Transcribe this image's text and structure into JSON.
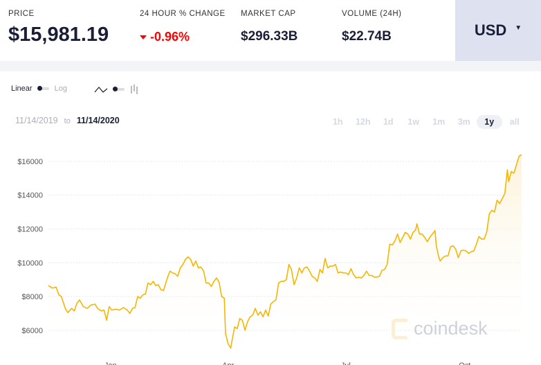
{
  "header": {
    "price": {
      "label": "PRICE",
      "value": "$15,981.19"
    },
    "change": {
      "label": "24 HOUR % CHANGE",
      "value": "-0.96%"
    },
    "market_cap": {
      "label": "MARKET CAP",
      "value": "$296.33B"
    },
    "volume": {
      "label": "VOLUME (24H)",
      "value": "$22.74B"
    },
    "currency": "USD"
  },
  "controls": {
    "linear": "Linear",
    "log": "Log"
  },
  "date_range": {
    "from": "11/14/2019",
    "to_word": "to",
    "to": "11/14/2020"
  },
  "ranges": [
    "1h",
    "12h",
    "1d",
    "1w",
    "1m",
    "3m",
    "1y",
    "all"
  ],
  "active_range": "1y",
  "watermark": "coindesk",
  "colors": {
    "line": "#f7b500",
    "fill": "#fdf3da",
    "accent": "#1a1f36",
    "negative": "#ff0000"
  },
  "chart_data": {
    "type": "area",
    "title": "",
    "xlabel": "",
    "ylabel": "",
    "x_unit": "days since 11/14/2019",
    "ylim": [
      4850,
      17350
    ],
    "xlim": [
      0,
      366
    ],
    "yticks": [
      {
        "v": 6000,
        "label": "$6000"
      },
      {
        "v": 8000,
        "label": "$8000"
      },
      {
        "v": 10000,
        "label": "$10000"
      },
      {
        "v": 12000,
        "label": "$12000"
      },
      {
        "v": 14000,
        "label": "$14000"
      },
      {
        "v": 16000,
        "label": "$16000"
      }
    ],
    "xticks": [
      {
        "d": 48,
        "label": "Jan"
      },
      {
        "d": 139,
        "label": "Apr"
      },
      {
        "d": 230,
        "label": "Jul"
      },
      {
        "d": 322,
        "label": "Oct"
      }
    ],
    "grid": true,
    "points": [
      [
        0,
        8650
      ],
      [
        3,
        8500
      ],
      [
        6,
        8550
      ],
      [
        8,
        8100
      ],
      [
        10,
        8000
      ],
      [
        13,
        7300
      ],
      [
        15,
        7050
      ],
      [
        18,
        7300
      ],
      [
        20,
        7150
      ],
      [
        22,
        7600
      ],
      [
        24,
        7800
      ],
      [
        27,
        7400
      ],
      [
        30,
        7300
      ],
      [
        33,
        7500
      ],
      [
        36,
        7550
      ],
      [
        38,
        7300
      ],
      [
        41,
        7150
      ],
      [
        43,
        7200
      ],
      [
        45,
        6600
      ],
      [
        47,
        7400
      ],
      [
        49,
        7200
      ],
      [
        52,
        7250
      ],
      [
        55,
        7200
      ],
      [
        58,
        7350
      ],
      [
        61,
        7200
      ],
      [
        63,
        7000
      ],
      [
        65,
        7300
      ],
      [
        67,
        7350
      ],
      [
        69,
        8000
      ],
      [
        71,
        7900
      ],
      [
        73,
        8100
      ],
      [
        75,
        8150
      ],
      [
        77,
        8800
      ],
      [
        79,
        8700
      ],
      [
        81,
        8900
      ],
      [
        83,
        8650
      ],
      [
        85,
        8700
      ],
      [
        87,
        8400
      ],
      [
        89,
        8350
      ],
      [
        92,
        9100
      ],
      [
        94,
        9500
      ],
      [
        96,
        9400
      ],
      [
        98,
        9350
      ],
      [
        100,
        9200
      ],
      [
        102,
        9700
      ],
      [
        104,
        9900
      ],
      [
        106,
        10200
      ],
      [
        108,
        10350
      ],
      [
        110,
        10200
      ],
      [
        112,
        9800
      ],
      [
        114,
        10100
      ],
      [
        116,
        9700
      ],
      [
        118,
        9750
      ],
      [
        120,
        9500
      ],
      [
        122,
        8800
      ],
      [
        124,
        8800
      ],
      [
        126,
        8600
      ],
      [
        128,
        8900
      ],
      [
        130,
        9100
      ],
      [
        132,
        8850
      ],
      [
        134,
        8000
      ],
      [
        136,
        7900
      ],
      [
        137,
        5800
      ],
      [
        139,
        5200
      ],
      [
        141,
        4950
      ],
      [
        142,
        5400
      ],
      [
        144,
        6200
      ],
      [
        146,
        6100
      ],
      [
        148,
        6700
      ],
      [
        150,
        6600
      ],
      [
        152,
        6000
      ],
      [
        154,
        6500
      ],
      [
        156,
        6800
      ],
      [
        158,
        6900
      ],
      [
        160,
        7300
      ],
      [
        162,
        6900
      ],
      [
        164,
        7100
      ],
      [
        166,
        6800
      ],
      [
        168,
        7200
      ],
      [
        170,
        6850
      ],
      [
        172,
        7550
      ],
      [
        174,
        7700
      ],
      [
        176,
        7800
      ],
      [
        178,
        8800
      ],
      [
        180,
        8900
      ],
      [
        182,
        8900
      ],
      [
        184,
        9000
      ],
      [
        186,
        9900
      ],
      [
        188,
        9600
      ],
      [
        190,
        8700
      ],
      [
        192,
        9100
      ],
      [
        194,
        9700
      ],
      [
        196,
        9400
      ],
      [
        198,
        9700
      ],
      [
        200,
        9750
      ],
      [
        202,
        9500
      ],
      [
        204,
        9200
      ],
      [
        206,
        9100
      ],
      [
        208,
        8900
      ],
      [
        210,
        9600
      ],
      [
        212,
        9400
      ],
      [
        214,
        10250
      ],
      [
        216,
        9700
      ],
      [
        218,
        9800
      ],
      [
        220,
        9800
      ],
      [
        222,
        9900
      ],
      [
        224,
        9400
      ],
      [
        226,
        9450
      ],
      [
        228,
        9400
      ],
      [
        230,
        9400
      ],
      [
        232,
        9300
      ],
      [
        234,
        9650
      ],
      [
        236,
        9300
      ],
      [
        238,
        9100
      ],
      [
        240,
        9150
      ],
      [
        242,
        9100
      ],
      [
        244,
        9250
      ],
      [
        246,
        9500
      ],
      [
        248,
        9250
      ],
      [
        250,
        9250
      ],
      [
        252,
        9150
      ],
      [
        254,
        9150
      ],
      [
        256,
        9200
      ],
      [
        258,
        9550
      ],
      [
        260,
        9600
      ],
      [
        262,
        9900
      ],
      [
        264,
        11100
      ],
      [
        266,
        11050
      ],
      [
        268,
        11300
      ],
      [
        270,
        11700
      ],
      [
        272,
        11200
      ],
      [
        274,
        11500
      ],
      [
        276,
        11800
      ],
      [
        278,
        11700
      ],
      [
        280,
        11400
      ],
      [
        282,
        11800
      ],
      [
        284,
        11950
      ],
      [
        285,
        12300
      ],
      [
        287,
        11700
      ],
      [
        289,
        11700
      ],
      [
        291,
        11500
      ],
      [
        293,
        11250
      ],
      [
        295,
        11500
      ],
      [
        297,
        11700
      ],
      [
        299,
        11900
      ],
      [
        300,
        11000
      ],
      [
        302,
        10300
      ],
      [
        303,
        10100
      ],
      [
        305,
        10300
      ],
      [
        307,
        10400
      ],
      [
        309,
        10400
      ],
      [
        311,
        10950
      ],
      [
        313,
        11000
      ],
      [
        315,
        10800
      ],
      [
        317,
        10300
      ],
      [
        319,
        10700
      ],
      [
        321,
        10750
      ],
      [
        323,
        10700
      ],
      [
        325,
        10550
      ],
      [
        327,
        10650
      ],
      [
        329,
        10700
      ],
      [
        331,
        11100
      ],
      [
        333,
        11550
      ],
      [
        335,
        11400
      ],
      [
        337,
        11400
      ],
      [
        339,
        11800
      ],
      [
        341,
        12900
      ],
      [
        343,
        13100
      ],
      [
        345,
        13000
      ],
      [
        347,
        13700
      ],
      [
        349,
        13500
      ],
      [
        351,
        13800
      ],
      [
        353,
        14100
      ],
      [
        355,
        15500
      ],
      [
        356,
        14800
      ],
      [
        358,
        15400
      ],
      [
        360,
        15300
      ],
      [
        362,
        15800
      ],
      [
        364,
        16300
      ],
      [
        366,
        16400
      ]
    ]
  }
}
